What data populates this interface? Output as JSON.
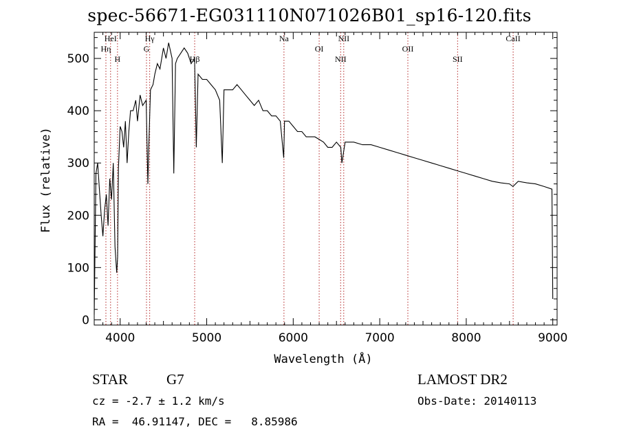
{
  "chart_data": {
    "type": "line",
    "title": "spec-56671-EG031110N071026B01_sp16-120.fits",
    "xlabel": "Wavelength (Å)",
    "ylabel": "Flux (relative)",
    "xlim": [
      3700,
      9050
    ],
    "ylim": [
      -10,
      550
    ],
    "xticks": [
      4000,
      5000,
      6000,
      7000,
      8000,
      9000
    ],
    "yticks": [
      0,
      100,
      200,
      300,
      400,
      500
    ],
    "grid": false,
    "series": [
      {
        "x": [
          3700,
          3720,
          3740,
          3760,
          3780,
          3800,
          3820,
          3840,
          3860,
          3880,
          3900,
          3920,
          3940,
          3960,
          3970,
          3980,
          4000,
          4020,
          4040,
          4060,
          4080,
          4100,
          4120,
          4150,
          4180,
          4200,
          4230,
          4260,
          4300,
          4320,
          4330,
          4350,
          4380,
          4400,
          4430,
          4460,
          4500,
          4530,
          4560,
          4600,
          4620,
          4640,
          4660,
          4700,
          4740,
          4780,
          4820,
          4860,
          4880,
          4900,
          4950,
          5000,
          5050,
          5100,
          5150,
          5180,
          5200,
          5250,
          5300,
          5350,
          5400,
          5450,
          5500,
          5550,
          5600,
          5650,
          5700,
          5750,
          5800,
          5850,
          5890,
          5900,
          5950,
          6000,
          6050,
          6100,
          6150,
          6200,
          6250,
          6300,
          6350,
          6400,
          6450,
          6500,
          6550,
          6563,
          6600,
          6650,
          6700,
          6800,
          6900,
          7000,
          7100,
          7200,
          7300,
          7400,
          7500,
          7600,
          7700,
          7800,
          7900,
          8000,
          8100,
          8200,
          8300,
          8400,
          8500,
          8540,
          8600,
          8700,
          8800,
          8900,
          8990,
          9000
        ],
        "y": [
          10,
          280,
          300,
          250,
          200,
          160,
          210,
          240,
          180,
          270,
          230,
          300,
          140,
          90,
          120,
          290,
          370,
          360,
          330,
          380,
          300,
          360,
          400,
          400,
          420,
          380,
          430,
          410,
          420,
          260,
          330,
          440,
          450,
          470,
          490,
          480,
          520,
          500,
          530,
          500,
          280,
          490,
          500,
          510,
          520,
          510,
          490,
          500,
          330,
          470,
          460,
          460,
          450,
          440,
          420,
          300,
          440,
          440,
          440,
          450,
          440,
          430,
          420,
          410,
          420,
          400,
          400,
          390,
          390,
          380,
          310,
          380,
          380,
          370,
          360,
          360,
          350,
          350,
          350,
          345,
          340,
          330,
          330,
          340,
          330,
          300,
          340,
          340,
          340,
          335,
          335,
          330,
          325,
          320,
          315,
          310,
          305,
          300,
          295,
          290,
          285,
          280,
          275,
          270,
          265,
          262,
          260,
          255,
          265,
          262,
          260,
          255,
          250,
          40
        ]
      }
    ],
    "lines": [
      {
        "label": "HeI",
        "x": 3889
      },
      {
        "label": "Hη",
        "x": 3835
      },
      {
        "label": "H",
        "x": 3969
      },
      {
        "label": "Hγ",
        "x": 4341
      },
      {
        "label": "G",
        "x": 4304
      },
      {
        "label": "Hβ",
        "x": 4861
      },
      {
        "label": "Na",
        "x": 5893
      },
      {
        "label": "OI",
        "x": 6300
      },
      {
        "label": "NII",
        "x": 6548
      },
      {
        "label": "NII",
        "x": 6584
      },
      {
        "label": "OII",
        "x": 7325
      },
      {
        "label": "SII",
        "x": 7900
      },
      {
        "label": "CaII",
        "x": 8542
      }
    ]
  },
  "footer": {
    "class_label": "STAR",
    "subclass": "G7",
    "survey": "LAMOST DR2",
    "redshift": "cz = -2.7 ± 1.2 km/s",
    "obs_date": "Obs-Date: 20140113",
    "coords": "RA =  46.91147, DEC =   8.85986"
  }
}
